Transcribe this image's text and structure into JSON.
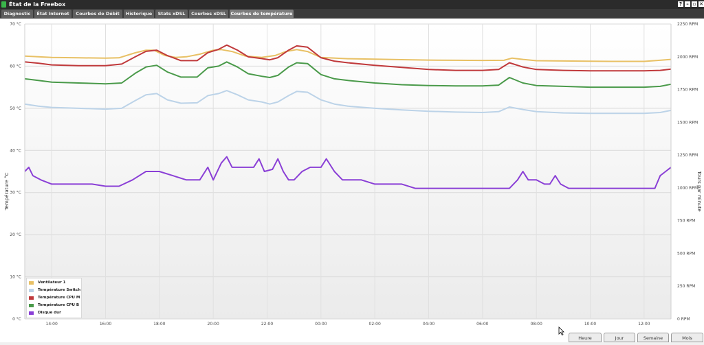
{
  "window": {
    "title": "État de la Freebox",
    "controls": [
      "?",
      "–",
      "▫",
      "✕"
    ]
  },
  "tabs": [
    {
      "label": "Diagnostic",
      "active": false
    },
    {
      "label": "État Internet",
      "active": false
    },
    {
      "label": "Courbes de Débit",
      "active": false
    },
    {
      "label": "Historique",
      "active": false
    },
    {
      "label": "Stats xDSL",
      "active": false
    },
    {
      "label": "Courbes xDSL",
      "active": false
    },
    {
      "label": "Courbes de température",
      "active": true
    }
  ],
  "range_buttons": [
    "Heure",
    "Jour",
    "Semaine",
    "Mois"
  ],
  "chart_data": {
    "type": "line",
    "ylabel_left": "Température °C",
    "ylabel_right": "Tours par minute",
    "ylim_left": [
      0,
      70
    ],
    "ylim_right": [
      0,
      2250
    ],
    "yticks_left": [
      "0 °C",
      "10 °C",
      "20 °C",
      "30 °C",
      "40 °C",
      "50 °C",
      "60 °C",
      "70 °C"
    ],
    "yticks_right": [
      "0 RPM",
      "250 RPM",
      "500 RPM",
      "750 RPM",
      "1000 RPM",
      "1250 RPM",
      "1500 RPM",
      "1750 RPM",
      "2000 RPM",
      "2250 RPM"
    ],
    "xlim": [
      13.0,
      37.0
    ],
    "x_tick_hours": [
      14,
      16,
      18,
      20,
      22,
      24,
      26,
      28,
      30,
      32,
      34,
      36
    ],
    "x_tick_labels": [
      "14:00",
      "16:00",
      "18:00",
      "20:00",
      "22:00",
      "00:00",
      "02:00",
      "04:00",
      "06:00",
      "08:00",
      "10:00",
      "12:00"
    ],
    "grid": true,
    "legend_position": "bottom-left",
    "series": [
      {
        "name": "Ventilateur 1",
        "color": "#e8c064",
        "axis": "right",
        "points": [
          [
            13.0,
            2005
          ],
          [
            13.5,
            2000
          ],
          [
            14,
            1995
          ],
          [
            15,
            1992
          ],
          [
            16,
            1990
          ],
          [
            16.5,
            1992
          ],
          [
            17.1,
            2030
          ],
          [
            17.5,
            2050
          ],
          [
            17.8,
            2050
          ],
          [
            18.2,
            2010
          ],
          [
            18.6,
            1995
          ],
          [
            19.0,
            2000
          ],
          [
            19.5,
            2020
          ],
          [
            20.0,
            2050
          ],
          [
            20.3,
            2055
          ],
          [
            20.7,
            2040
          ],
          [
            21.2,
            2005
          ],
          [
            21.8,
            1995
          ],
          [
            22.3,
            2010
          ],
          [
            22.7,
            2040
          ],
          [
            23.1,
            2055
          ],
          [
            23.5,
            2040
          ],
          [
            24.0,
            1995
          ],
          [
            25,
            1985
          ],
          [
            26,
            1982
          ],
          [
            27,
            1978
          ],
          [
            28,
            1975
          ],
          [
            29,
            1973
          ],
          [
            30,
            1972
          ],
          [
            30.8,
            1973
          ],
          [
            31.1,
            1990
          ],
          [
            31.5,
            1980
          ],
          [
            32,
            1970
          ],
          [
            33,
            1968
          ],
          [
            34,
            1966
          ],
          [
            35,
            1965
          ],
          [
            36,
            1965
          ],
          [
            36.5,
            1972
          ],
          [
            37,
            1980
          ]
        ]
      },
      {
        "name": "Température Switch",
        "color": "#bcd3e8",
        "axis": "left",
        "points": [
          [
            13.0,
            51
          ],
          [
            13.5,
            50.5
          ],
          [
            14,
            50.2
          ],
          [
            15,
            50
          ],
          [
            16,
            49.8
          ],
          [
            16.6,
            50
          ],
          [
            17.1,
            51.8
          ],
          [
            17.5,
            53.2
          ],
          [
            17.9,
            53.5
          ],
          [
            18.3,
            52
          ],
          [
            18.8,
            51.2
          ],
          [
            19.4,
            51.3
          ],
          [
            19.8,
            53
          ],
          [
            20.2,
            53.5
          ],
          [
            20.5,
            54.2
          ],
          [
            20.9,
            53.2
          ],
          [
            21.3,
            52
          ],
          [
            21.8,
            51.5
          ],
          [
            22.1,
            51
          ],
          [
            22.4,
            51.5
          ],
          [
            22.8,
            53
          ],
          [
            23.1,
            54
          ],
          [
            23.5,
            53.8
          ],
          [
            24.0,
            52
          ],
          [
            24.5,
            51
          ],
          [
            25,
            50.5
          ],
          [
            26,
            50
          ],
          [
            27,
            49.6
          ],
          [
            28,
            49.3
          ],
          [
            29,
            49.1
          ],
          [
            30,
            49
          ],
          [
            30.6,
            49.2
          ],
          [
            31.0,
            50.3
          ],
          [
            31.5,
            49.7
          ],
          [
            32,
            49.2
          ],
          [
            33,
            48.9
          ],
          [
            34,
            48.8
          ],
          [
            35,
            48.8
          ],
          [
            36,
            48.8
          ],
          [
            36.6,
            49
          ],
          [
            37,
            49.5
          ]
        ]
      },
      {
        "name": "Température CPU M",
        "color": "#c0393b",
        "axis": "left",
        "points": [
          [
            13.0,
            61
          ],
          [
            13.5,
            60.7
          ],
          [
            14,
            60.3
          ],
          [
            15,
            60.1
          ],
          [
            16,
            60.1
          ],
          [
            16.6,
            60.5
          ],
          [
            17.1,
            62.2
          ],
          [
            17.5,
            63.5
          ],
          [
            17.9,
            63.8
          ],
          [
            18.3,
            62.5
          ],
          [
            18.8,
            61.3
          ],
          [
            19.4,
            61.3
          ],
          [
            19.8,
            63.2
          ],
          [
            20.2,
            64
          ],
          [
            20.5,
            65
          ],
          [
            20.9,
            63.8
          ],
          [
            21.3,
            62.2
          ],
          [
            21.8,
            61.8
          ],
          [
            22.1,
            61.5
          ],
          [
            22.4,
            62
          ],
          [
            22.8,
            63.8
          ],
          [
            23.1,
            64.8
          ],
          [
            23.5,
            64.5
          ],
          [
            24.0,
            62
          ],
          [
            24.5,
            61.2
          ],
          [
            25,
            60.8
          ],
          [
            26,
            60.2
          ],
          [
            27,
            59.7
          ],
          [
            28,
            59.2
          ],
          [
            29,
            59
          ],
          [
            30,
            59
          ],
          [
            30.6,
            59.2
          ],
          [
            31.0,
            60.8
          ],
          [
            31.5,
            59.8
          ],
          [
            32,
            59.2
          ],
          [
            33,
            59
          ],
          [
            34,
            58.9
          ],
          [
            35,
            58.9
          ],
          [
            36,
            58.9
          ],
          [
            36.6,
            59
          ],
          [
            37,
            59.3
          ]
        ]
      },
      {
        "name": "Température CPU B",
        "color": "#4a9a4a",
        "axis": "left",
        "points": [
          [
            13.0,
            57
          ],
          [
            13.5,
            56.6
          ],
          [
            14,
            56.2
          ],
          [
            15,
            56
          ],
          [
            16,
            55.8
          ],
          [
            16.6,
            56
          ],
          [
            17.1,
            58.3
          ],
          [
            17.5,
            59.8
          ],
          [
            17.9,
            60.2
          ],
          [
            18.3,
            58.6
          ],
          [
            18.8,
            57.4
          ],
          [
            19.4,
            57.4
          ],
          [
            19.8,
            59.6
          ],
          [
            20.2,
            60
          ],
          [
            20.5,
            61
          ],
          [
            20.9,
            59.8
          ],
          [
            21.3,
            58.2
          ],
          [
            21.8,
            57.6
          ],
          [
            22.1,
            57.3
          ],
          [
            22.4,
            57.8
          ],
          [
            22.8,
            59.8
          ],
          [
            23.1,
            60.8
          ],
          [
            23.5,
            60.6
          ],
          [
            24.0,
            58
          ],
          [
            24.5,
            57
          ],
          [
            25,
            56.6
          ],
          [
            26,
            56
          ],
          [
            27,
            55.6
          ],
          [
            28,
            55.4
          ],
          [
            29,
            55.3
          ],
          [
            30,
            55.3
          ],
          [
            30.6,
            55.5
          ],
          [
            31.0,
            57.3
          ],
          [
            31.5,
            56
          ],
          [
            32,
            55.4
          ],
          [
            33,
            55.2
          ],
          [
            34,
            55
          ],
          [
            35,
            55
          ],
          [
            36,
            55
          ],
          [
            36.6,
            55.2
          ],
          [
            37,
            55.7
          ]
        ]
      },
      {
        "name": "Disque dur",
        "color": "#8a3fd6",
        "axis": "left",
        "points": [
          [
            13.0,
            35
          ],
          [
            13.15,
            36
          ],
          [
            13.3,
            34
          ],
          [
            13.6,
            33
          ],
          [
            14,
            32
          ],
          [
            15,
            32
          ],
          [
            15.5,
            32
          ],
          [
            16,
            31.5
          ],
          [
            16.5,
            31.5
          ],
          [
            17,
            33
          ],
          [
            17.5,
            35
          ],
          [
            18,
            35
          ],
          [
            18.5,
            34
          ],
          [
            19,
            33
          ],
          [
            19.5,
            33
          ],
          [
            19.8,
            36
          ],
          [
            20.0,
            33
          ],
          [
            20.3,
            37
          ],
          [
            20.5,
            38.5
          ],
          [
            20.7,
            36
          ],
          [
            21,
            36
          ],
          [
            21.5,
            36
          ],
          [
            21.7,
            38
          ],
          [
            21.9,
            35
          ],
          [
            22.2,
            35.5
          ],
          [
            22.4,
            38
          ],
          [
            22.6,
            35
          ],
          [
            22.8,
            33
          ],
          [
            23.0,
            33
          ],
          [
            23.3,
            35
          ],
          [
            23.6,
            36
          ],
          [
            24,
            36
          ],
          [
            24.2,
            38
          ],
          [
            24.5,
            35
          ],
          [
            24.8,
            33
          ],
          [
            25.5,
            33
          ],
          [
            26,
            32
          ],
          [
            27,
            32
          ],
          [
            27.5,
            31
          ],
          [
            28,
            31
          ],
          [
            28.5,
            31
          ],
          [
            29,
            31
          ],
          [
            30,
            31
          ],
          [
            31,
            31
          ],
          [
            31.3,
            33
          ],
          [
            31.5,
            35
          ],
          [
            31.7,
            33
          ],
          [
            32,
            33
          ],
          [
            32.3,
            32
          ],
          [
            32.5,
            32
          ],
          [
            32.7,
            34
          ],
          [
            32.9,
            32
          ],
          [
            33.2,
            31
          ],
          [
            34,
            31
          ],
          [
            35,
            31
          ],
          [
            36,
            31
          ],
          [
            36.4,
            31
          ],
          [
            36.6,
            34
          ],
          [
            36.8,
            35
          ],
          [
            37,
            36
          ]
        ]
      }
    ]
  }
}
